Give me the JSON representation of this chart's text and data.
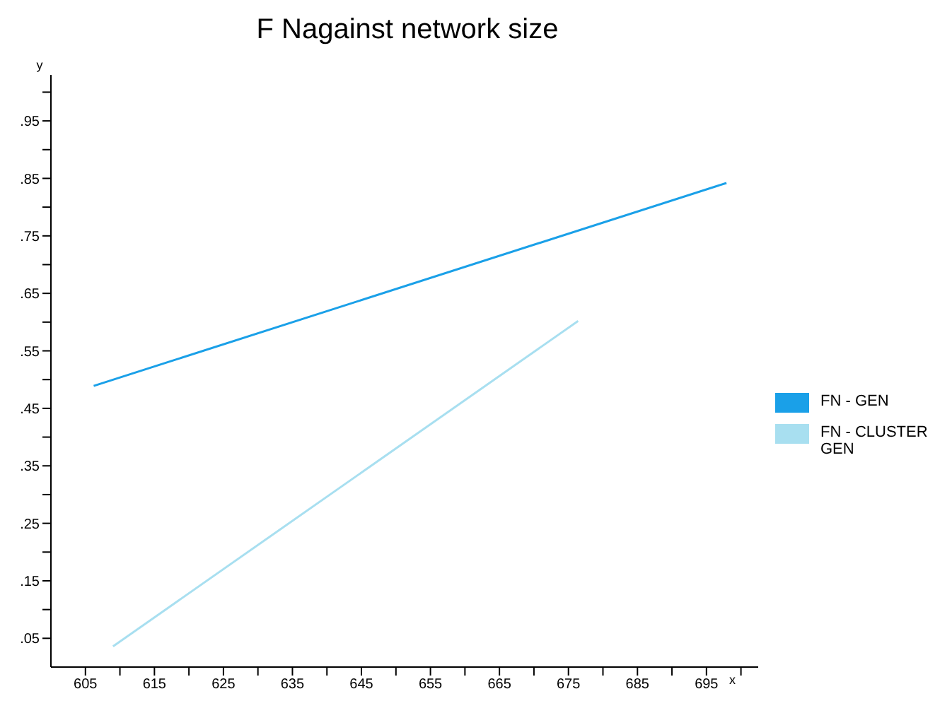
{
  "chart_data": {
    "type": "line",
    "title": "F Nagainst network size",
    "xlabel": "x",
    "ylabel": "y",
    "series": [
      {
        "name": "FN - GEN",
        "color": "#1aa0e8",
        "x": [
          606.2,
          697.9
        ],
        "values": [
          0.489,
          0.842
        ]
      },
      {
        "name": "FN - CLUSTER GEN",
        "color": "#a8dff0",
        "x": [
          609,
          676.4
        ],
        "values": [
          0.036,
          0.602
        ]
      }
    ],
    "xlim": [
      600,
      702.5
    ],
    "xticks": [
      605,
      {
        "value": 610,
        "label": null
      },
      615,
      {
        "value": 620,
        "label": null
      },
      625,
      {
        "value": 630,
        "label": null
      },
      635,
      {
        "value": 640,
        "label": null
      },
      645,
      {
        "value": 650,
        "label": null
      },
      655,
      {
        "value": 660,
        "label": null
      },
      665,
      {
        "value": 670,
        "label": null
      },
      675,
      {
        "value": 680,
        "label": null
      },
      685,
      {
        "value": 690,
        "label": null
      },
      695,
      {
        "value": 700,
        "label": null
      }
    ],
    "ylim": [
      0,
      1.03
    ],
    "yticks": [
      {
        "value": 0.05,
        "label": ".05"
      },
      {
        "value": 0.1,
        "label": null
      },
      {
        "value": 0.15,
        "label": ".15"
      },
      {
        "value": 0.2,
        "label": null
      },
      {
        "value": 0.25,
        "label": ".25"
      },
      {
        "value": 0.3,
        "label": null
      },
      {
        "value": 0.35,
        "label": ".35"
      },
      {
        "value": 0.4,
        "label": null
      },
      {
        "value": 0.45,
        "label": ".45"
      },
      {
        "value": 0.5,
        "label": null
      },
      {
        "value": 0.55,
        "label": ".55"
      },
      {
        "value": 0.6,
        "label": null
      },
      {
        "value": 0.65,
        "label": ".65"
      },
      {
        "value": 0.7,
        "label": null
      },
      {
        "value": 0.75,
        "label": ".75"
      },
      {
        "value": 0.8,
        "label": null
      },
      {
        "value": 0.85,
        "label": ".85"
      },
      {
        "value": 0.9,
        "label": null
      },
      {
        "value": 0.95,
        "label": ".95"
      },
      {
        "value": 1.0,
        "label": null
      }
    ],
    "grid": false,
    "legend": "right",
    "marker": "none",
    "line_style": "solid"
  }
}
